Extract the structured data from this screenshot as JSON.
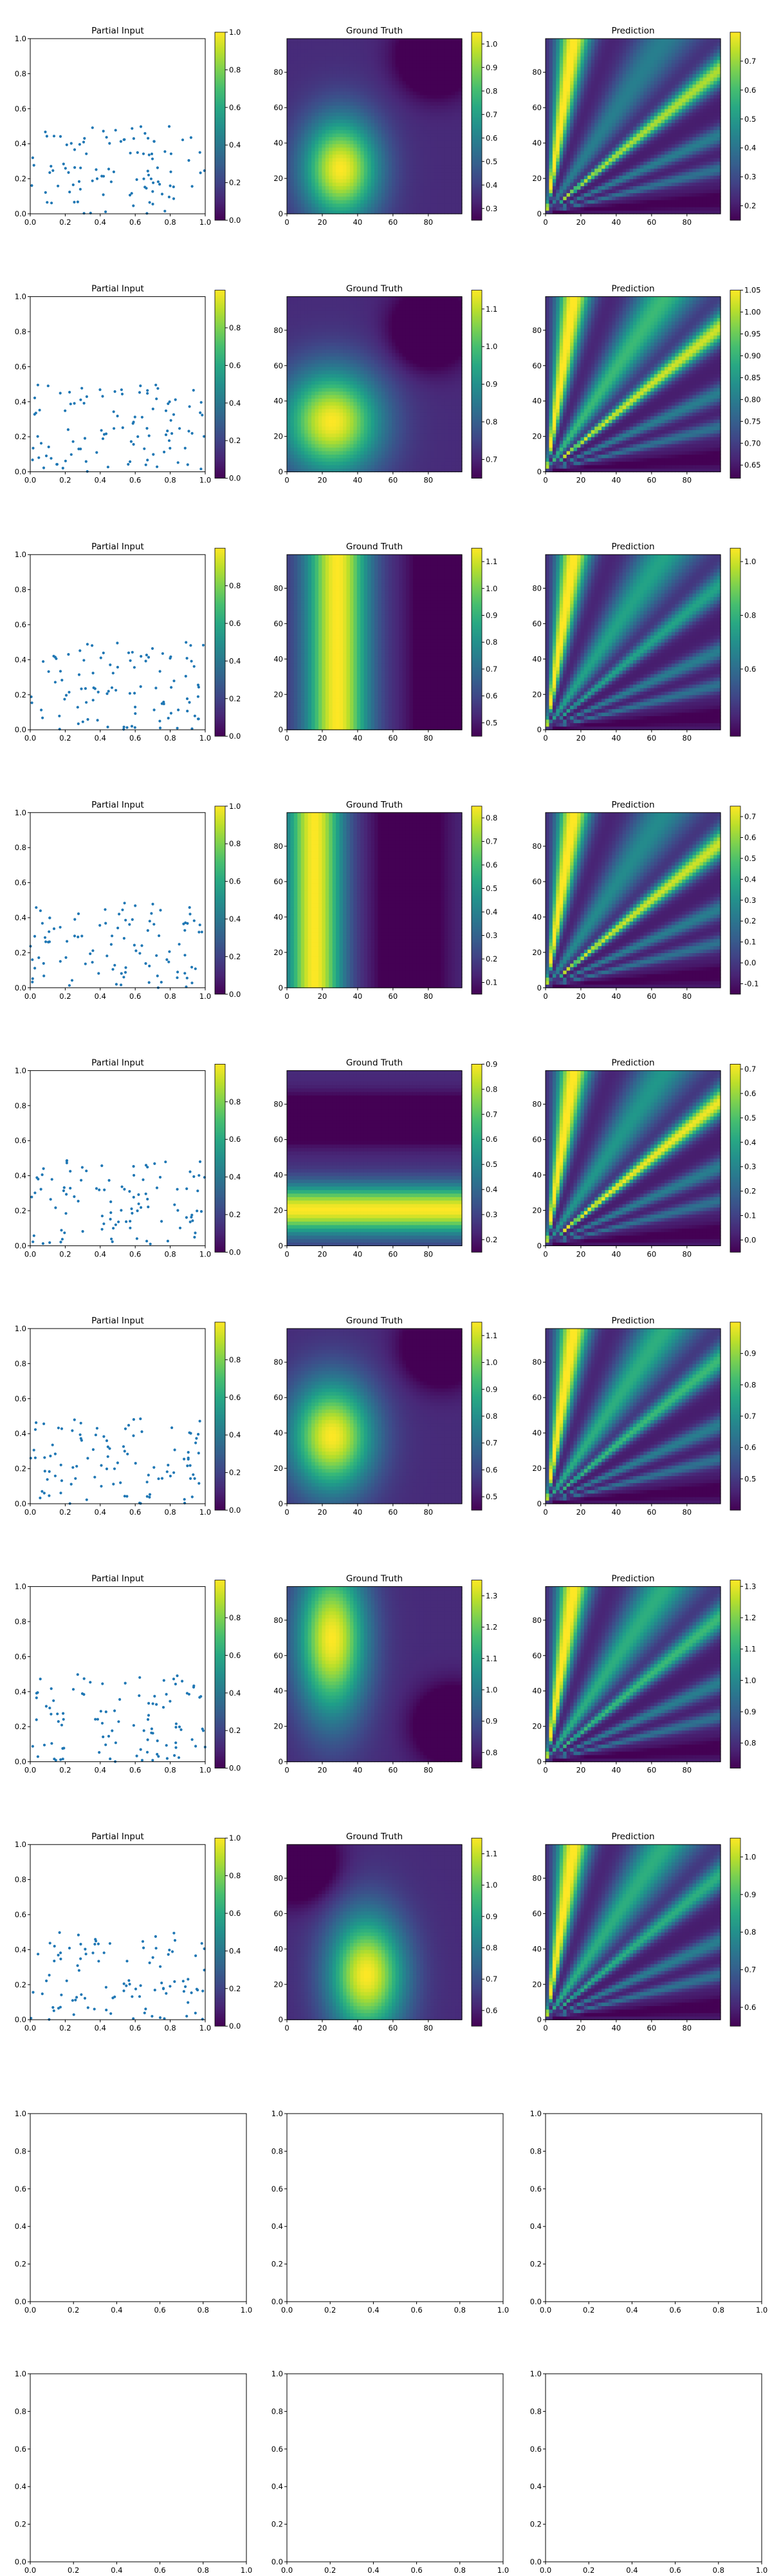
{
  "figure": {
    "columns": [
      "Partial Input",
      "Ground Truth",
      "Prediction"
    ],
    "rows_with_data": 8,
    "empty_rows": 2
  },
  "colormap": "viridis",
  "colors": {
    "scatter_point": "#1f77b4",
    "axes_frame": "#000000",
    "background": "#ffffff"
  },
  "chart_data": [
    {
      "type": "scatter",
      "panel": "partial-input",
      "title": "Partial Input",
      "xlim": [
        0,
        1
      ],
      "ylim": [
        0,
        1
      ],
      "xticks": [
        "0.0",
        "0.2",
        "0.4",
        "0.6",
        "0.8",
        "1.0"
      ],
      "yticks": [
        "0.0",
        "0.2",
        "0.4",
        "0.6",
        "0.8",
        "1.0"
      ],
      "points_per_row": 100,
      "y_range_of_points": [
        0,
        0.5
      ],
      "colorbar_ticks": [
        "0.0",
        "0.2",
        "0.4",
        "0.6",
        "0.8",
        "1.0"
      ]
    },
    {
      "type": "heatmap",
      "panel": "ground-truth",
      "title": "Ground Truth",
      "xlim": [
        0,
        99
      ],
      "ylim": [
        0,
        99
      ],
      "xticks": [
        "0",
        "20",
        "40",
        "60",
        "80"
      ],
      "yticks": [
        "0",
        "20",
        "40",
        "60",
        "80"
      ]
    },
    {
      "type": "heatmap",
      "panel": "prediction",
      "title": "Prediction",
      "xlim": [
        0,
        99
      ],
      "ylim": [
        0,
        99
      ],
      "xticks": [
        "0",
        "20",
        "40",
        "60",
        "80"
      ],
      "yticks": [
        "0",
        "20",
        "40",
        "60",
        "80"
      ]
    }
  ],
  "rows": [
    {
      "input_cbar": [
        "0.0",
        "0.2",
        "0.4",
        "0.6",
        "0.8",
        "1.0"
      ],
      "gt": {
        "kind": "blob",
        "cx": 30,
        "cy": 25,
        "sx": 22,
        "sy": 30,
        "dark": [
          [
            85,
            90
          ]
        ],
        "vmin": 0.25,
        "vmax": 1.05,
        "cbar": [
          "0.3",
          "0.4",
          "0.5",
          "0.6",
          "0.7",
          "0.8",
          "0.9",
          "1.0"
        ]
      },
      "pred": {
        "vmin": 0.15,
        "vmax": 0.8,
        "bright": [
          7,
          0.8
        ],
        "band": 0.35,
        "cbar": [
          "0.2",
          "0.3",
          "0.4",
          "0.5",
          "0.6",
          "0.7"
        ]
      }
    },
    {
      "input_cbar": [
        "0.0",
        "0.2",
        "0.4",
        "0.6",
        "0.8"
      ],
      "gt": {
        "kind": "blob",
        "cx": 25,
        "cy": 28,
        "sx": 28,
        "sy": 30,
        "dark": [
          [
            82,
            82
          ]
        ],
        "vmin": 0.65,
        "vmax": 1.15,
        "cbar": [
          "0.7",
          "0.8",
          "0.9",
          "1.0",
          "1.1"
        ]
      },
      "pred": {
        "vmin": 0.62,
        "vmax": 1.05,
        "bright": [
          7,
          0.85
        ],
        "band": 0.6,
        "cbar": [
          "0.65",
          "0.70",
          "0.75",
          "0.80",
          "0.85",
          "0.90",
          "0.95",
          "1.00",
          "1.05"
        ]
      }
    },
    {
      "input_cbar": [
        "0.0",
        "0.2",
        "0.4",
        "0.6",
        "0.8"
      ],
      "gt": {
        "kind": "vband",
        "cx": 28,
        "sx": 18,
        "dark": [
          [
            90,
            50
          ]
        ],
        "vmin": 0.45,
        "vmax": 1.15,
        "cbar": [
          "0.5",
          "0.6",
          "0.7",
          "0.8",
          "0.9",
          "1.0",
          "1.1"
        ]
      },
      "pred": {
        "vmin": 0.35,
        "vmax": 1.05,
        "bright": [
          7,
          0.5
        ],
        "band": 0.5,
        "cbar": [
          "0.6",
          "0.8",
          "1.0"
        ]
      }
    },
    {
      "input_cbar": [
        "0.0",
        "0.2",
        "0.4",
        "0.6",
        "0.8",
        "1.0"
      ],
      "gt": {
        "kind": "vband",
        "cx": 15,
        "sx": 16,
        "dark": [
          [
            70,
            50
          ]
        ],
        "vmin": 0.05,
        "vmax": 0.85,
        "cbar": [
          "0.1",
          "0.2",
          "0.3",
          "0.4",
          "0.5",
          "0.6",
          "0.7",
          "0.8"
        ]
      },
      "pred": {
        "vmin": -0.15,
        "vmax": 0.75,
        "bright": [
          7,
          0.85
        ],
        "band": 0.4,
        "cbar": [
          "-0.1",
          "0.0",
          "0.1",
          "0.2",
          "0.3",
          "0.4",
          "0.5",
          "0.6",
          "0.7"
        ]
      }
    },
    {
      "input_cbar": [
        "0.0",
        "0.2",
        "0.4",
        "0.6",
        "0.8"
      ],
      "gt": {
        "kind": "hband",
        "cy": 20,
        "sy": 14,
        "dark": [
          [
            50,
            72
          ]
        ],
        "vmin": 0.15,
        "vmax": 0.9,
        "cbar": [
          "0.2",
          "0.3",
          "0.4",
          "0.5",
          "0.6",
          "0.7",
          "0.8",
          "0.9"
        ]
      },
      "pred": {
        "vmin": -0.05,
        "vmax": 0.72,
        "bright": [
          7,
          0.9
        ],
        "band": 0.45,
        "cbar": [
          "0.0",
          "0.1",
          "0.2",
          "0.3",
          "0.4",
          "0.5",
          "0.6",
          "0.7"
        ]
      }
    },
    {
      "input_cbar": [
        "0.0",
        "0.2",
        "0.4",
        "0.6",
        "0.8"
      ],
      "gt": {
        "kind": "blob",
        "cx": 25,
        "cy": 38,
        "sx": 24,
        "sy": 32,
        "dark": [
          [
            88,
            90
          ]
        ],
        "vmin": 0.45,
        "vmax": 1.15,
        "cbar": [
          "0.5",
          "0.6",
          "0.7",
          "0.8",
          "0.9",
          "1.0",
          "1.1"
        ]
      },
      "pred": {
        "vmin": 0.4,
        "vmax": 1.0,
        "bright": [
          7,
          0.6
        ],
        "band": 0.55,
        "cbar": [
          "0.5",
          "0.6",
          "0.7",
          "0.8",
          "0.9"
        ]
      }
    },
    {
      "input_cbar": [
        "0.0",
        "0.2",
        "0.4",
        "0.6",
        "0.8"
      ],
      "gt": {
        "kind": "blob",
        "cx": 25,
        "cy": 70,
        "sx": 20,
        "sy": 45,
        "dark": [
          [
            95,
            20
          ]
        ],
        "vmin": 0.75,
        "vmax": 1.35,
        "cbar": [
          "0.8",
          "0.9",
          "1.0",
          "1.1",
          "1.2",
          "1.3"
        ]
      },
      "pred": {
        "vmin": 0.72,
        "vmax": 1.32,
        "bright": [
          7,
          0.6
        ],
        "band": 0.55,
        "cbar": [
          "0.8",
          "0.9",
          "1.0",
          "1.1",
          "1.2",
          "1.3"
        ]
      }
    },
    {
      "input_cbar": [
        "0.0",
        "0.2",
        "0.4",
        "0.6",
        "0.8",
        "1.0"
      ],
      "gt": {
        "kind": "blob",
        "cx": 45,
        "cy": 25,
        "sx": 22,
        "sy": 35,
        "dark": [
          [
            5,
            90
          ]
        ],
        "vmin": 0.55,
        "vmax": 1.15,
        "cbar": [
          "0.6",
          "0.7",
          "0.8",
          "0.9",
          "1.0",
          "1.1"
        ]
      },
      "pred": {
        "vmin": 0.55,
        "vmax": 1.05,
        "bright": [
          7,
          0.55
        ],
        "band": 0.55,
        "cbar": [
          "0.6",
          "0.7",
          "0.8",
          "0.9",
          "1.0"
        ]
      }
    }
  ],
  "empty_axes": {
    "xticks": [
      "0.0",
      "0.2",
      "0.4",
      "0.6",
      "0.8",
      "1.0"
    ],
    "yticks": [
      "0.0",
      "0.2",
      "0.4",
      "0.6",
      "0.8",
      "1.0"
    ]
  }
}
